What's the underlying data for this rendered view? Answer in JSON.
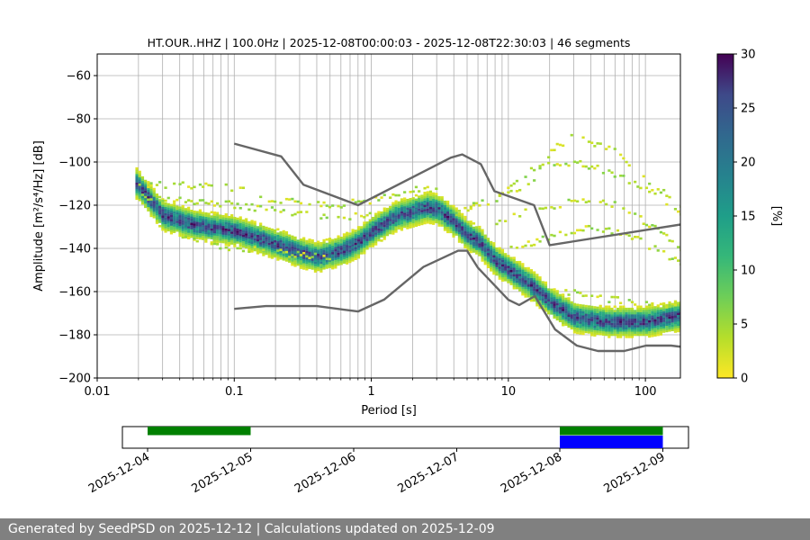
{
  "chart_data": [
    {
      "type": "heatmap",
      "title": "HT.OUR..HHZ | 100.0Hz | 2025-12-08T00:00:03 - 2025-12-08T22:30:03 | 46 segments",
      "xlabel": "Period [s]",
      "ylabel": "Amplitude [m²/s⁴/Hz] [dB]",
      "x_scale": "log",
      "xlim": [
        0.01,
        180
      ],
      "ylim": [
        -200,
        -50
      ],
      "x_ticks": [
        0.01,
        0.1,
        1,
        10,
        100
      ],
      "x_tick_labels": [
        "0.01",
        "0.1",
        "1",
        "10",
        "100"
      ],
      "y_ticks": [
        -200,
        -180,
        -160,
        -140,
        -120,
        -100,
        -80,
        -60
      ],
      "y_tick_labels": [
        "−200",
        "−180",
        "−160",
        "−140",
        "−120",
        "−100",
        "−80",
        "−60"
      ],
      "grid": "x-minor",
      "colorbar": {
        "label": "[%]",
        "range": [
          0,
          30
        ],
        "ticks": [
          0,
          5,
          10,
          15,
          20,
          25,
          30
        ],
        "colormap": "viridis_r"
      },
      "mode_curve": {
        "period": [
          0.019,
          0.03,
          0.05,
          0.1,
          0.2,
          0.3,
          0.4,
          0.6,
          0.8,
          1.0,
          1.5,
          2.5,
          3.0,
          4.0,
          5.0,
          6.0,
          8.0,
          10,
          15,
          20,
          30,
          50,
          100,
          180
        ],
        "db": [
          -110,
          -125,
          -129,
          -132,
          -138,
          -142,
          -144,
          -141,
          -137,
          -132,
          -125,
          -121,
          -122,
          -128,
          -134,
          -137,
          -146,
          -150,
          -158,
          -165,
          -172,
          -174,
          -174,
          -171
        ]
      },
      "scatter_bands": [
        {
          "period": [
            0.019,
            0.05,
            0.1,
            0.2,
            0.5,
            1.0,
            2.0,
            3.0
          ],
          "db": [
            -110,
            -111,
            -112,
            -118,
            -120,
            -118,
            -113,
            -112
          ]
        },
        {
          "period": [
            0.02,
            0.05,
            0.1,
            0.3,
            0.5,
            1.0
          ],
          "db": [
            -116,
            -118,
            -120,
            -124,
            -126,
            -124
          ]
        },
        {
          "period": [
            0.04,
            0.1,
            0.2,
            0.5
          ],
          "db": [
            -135,
            -140,
            -142,
            -144
          ]
        },
        {
          "period": [
            5,
            8,
            15,
            20,
            30,
            60,
            100,
            180
          ],
          "db": [
            -120,
            -118,
            -108,
            -95,
            -88,
            -95,
            -108,
            -120
          ]
        },
        {
          "period": [
            4,
            8,
            15,
            30,
            50,
            100,
            180
          ],
          "db": [
            -125,
            -115,
            -103,
            -100,
            -104,
            -112,
            -124
          ]
        },
        {
          "period": [
            8,
            15,
            30,
            60,
            100,
            180
          ],
          "db": [
            -128,
            -122,
            -118,
            -120,
            -128,
            -140
          ]
        },
        {
          "period": [
            10,
            20,
            40,
            80,
            180
          ],
          "db": [
            -140,
            -135,
            -130,
            -135,
            -147
          ]
        },
        {
          "period": [
            25,
            60,
            180
          ],
          "db": [
            -160,
            -164,
            -167
          ]
        }
      ],
      "nhnm": {
        "period": [
          0.1,
          0.22,
          0.32,
          0.8,
          3.8,
          4.6,
          6.3,
          7.9,
          15.4,
          20,
          354.8
        ],
        "db": [
          -91.5,
          -97.4,
          -110.5,
          -120,
          -98,
          -96.5,
          -101,
          -113.5,
          -120,
          -138.5,
          -126
        ]
      },
      "nlnm": {
        "period": [
          0.1,
          0.17,
          0.4,
          0.8,
          1.24,
          2.4,
          4.3,
          5.0,
          6.0,
          10,
          12,
          15.6,
          21.9,
          31.6,
          45,
          70,
          101,
          154,
          328
        ],
        "db": [
          -168,
          -166.7,
          -166.7,
          -169.2,
          -163.7,
          -148.6,
          -141.1,
          -141.1,
          -149,
          -163.8,
          -166.2,
          -162.1,
          -177.5,
          -185,
          -187.5,
          -187.5,
          -185,
          -185,
          -187.5
        ]
      }
    },
    {
      "type": "timeline",
      "x_tick_labels": [
        "2025-12-04",
        "2025-12-05",
        "2025-12-06",
        "2025-12-07",
        "2025-12-08",
        "2025-12-09"
      ],
      "available_color": "#008000",
      "selected_color": "#0000ff",
      "available": [
        [
          "2025-12-04",
          "2025-12-05"
        ],
        [
          "2025-12-08",
          "2025-12-09"
        ]
      ],
      "selected": [
        [
          "2025-12-08",
          "2025-12-09"
        ]
      ]
    }
  ],
  "footer": {
    "text": "Generated by SeedPSD on 2025-12-12 | Calculations updated on 2025-12-09"
  }
}
